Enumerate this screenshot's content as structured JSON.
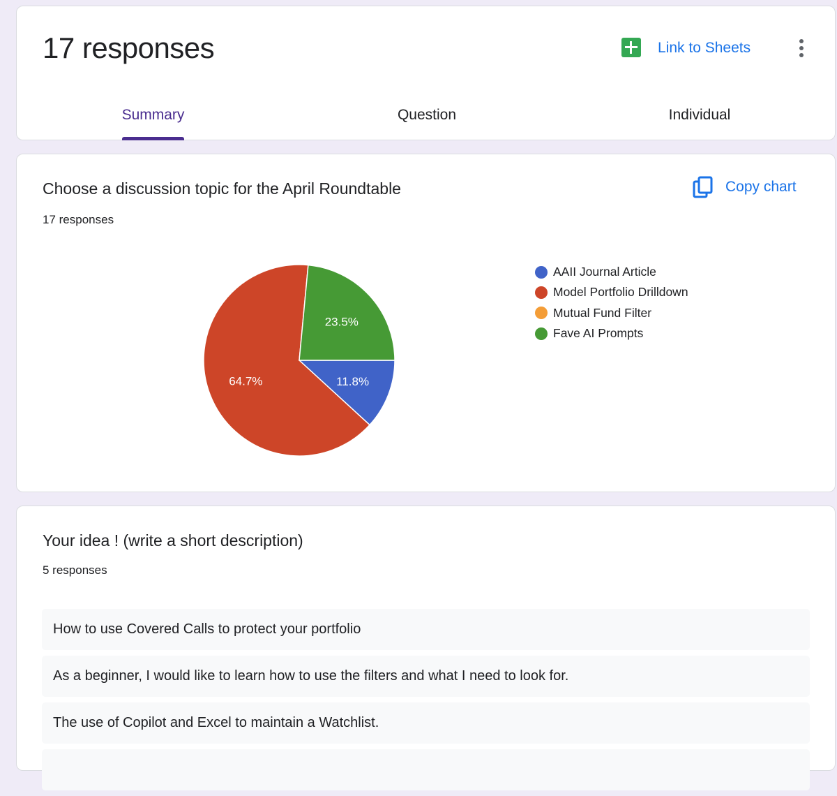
{
  "header": {
    "title": "17 responses",
    "link_sheets": "Link to Sheets",
    "tabs": [
      {
        "label": "Summary",
        "active": true
      },
      {
        "label": "Question",
        "active": false
      },
      {
        "label": "Individual",
        "active": false
      }
    ],
    "icons": {
      "sheets": "google-sheets-icon",
      "more": "more-vert-icon"
    }
  },
  "chart_card": {
    "title": "Choose a discussion topic for the April Roundtable",
    "count": "17 responses",
    "copy_label": "Copy chart",
    "icon": "copy-icon"
  },
  "chart_data": {
    "type": "pie",
    "categories": [
      "AAII Journal Article",
      "Model Portfolio Drilldown",
      "Mutual Fund Filter",
      "Fave AI Prompts"
    ],
    "values": [
      11.8,
      64.7,
      0,
      23.5
    ],
    "labels": [
      "11.8%",
      "64.7%",
      "",
      "23.5%"
    ],
    "colors": [
      "#4063c8",
      "#cd4528",
      "#f49d37",
      "#469a35"
    ],
    "legend_position": "right"
  },
  "text_card": {
    "title": "Your idea !  (write a short description)",
    "count": "5 responses",
    "answers": [
      "How to use Covered Calls to protect your portfolio",
      "As a beginner, I would like to learn how to use the filters and what I need to look for.",
      "The use of Copilot and Excel to maintain a Watchlist.",
      ""
    ]
  }
}
